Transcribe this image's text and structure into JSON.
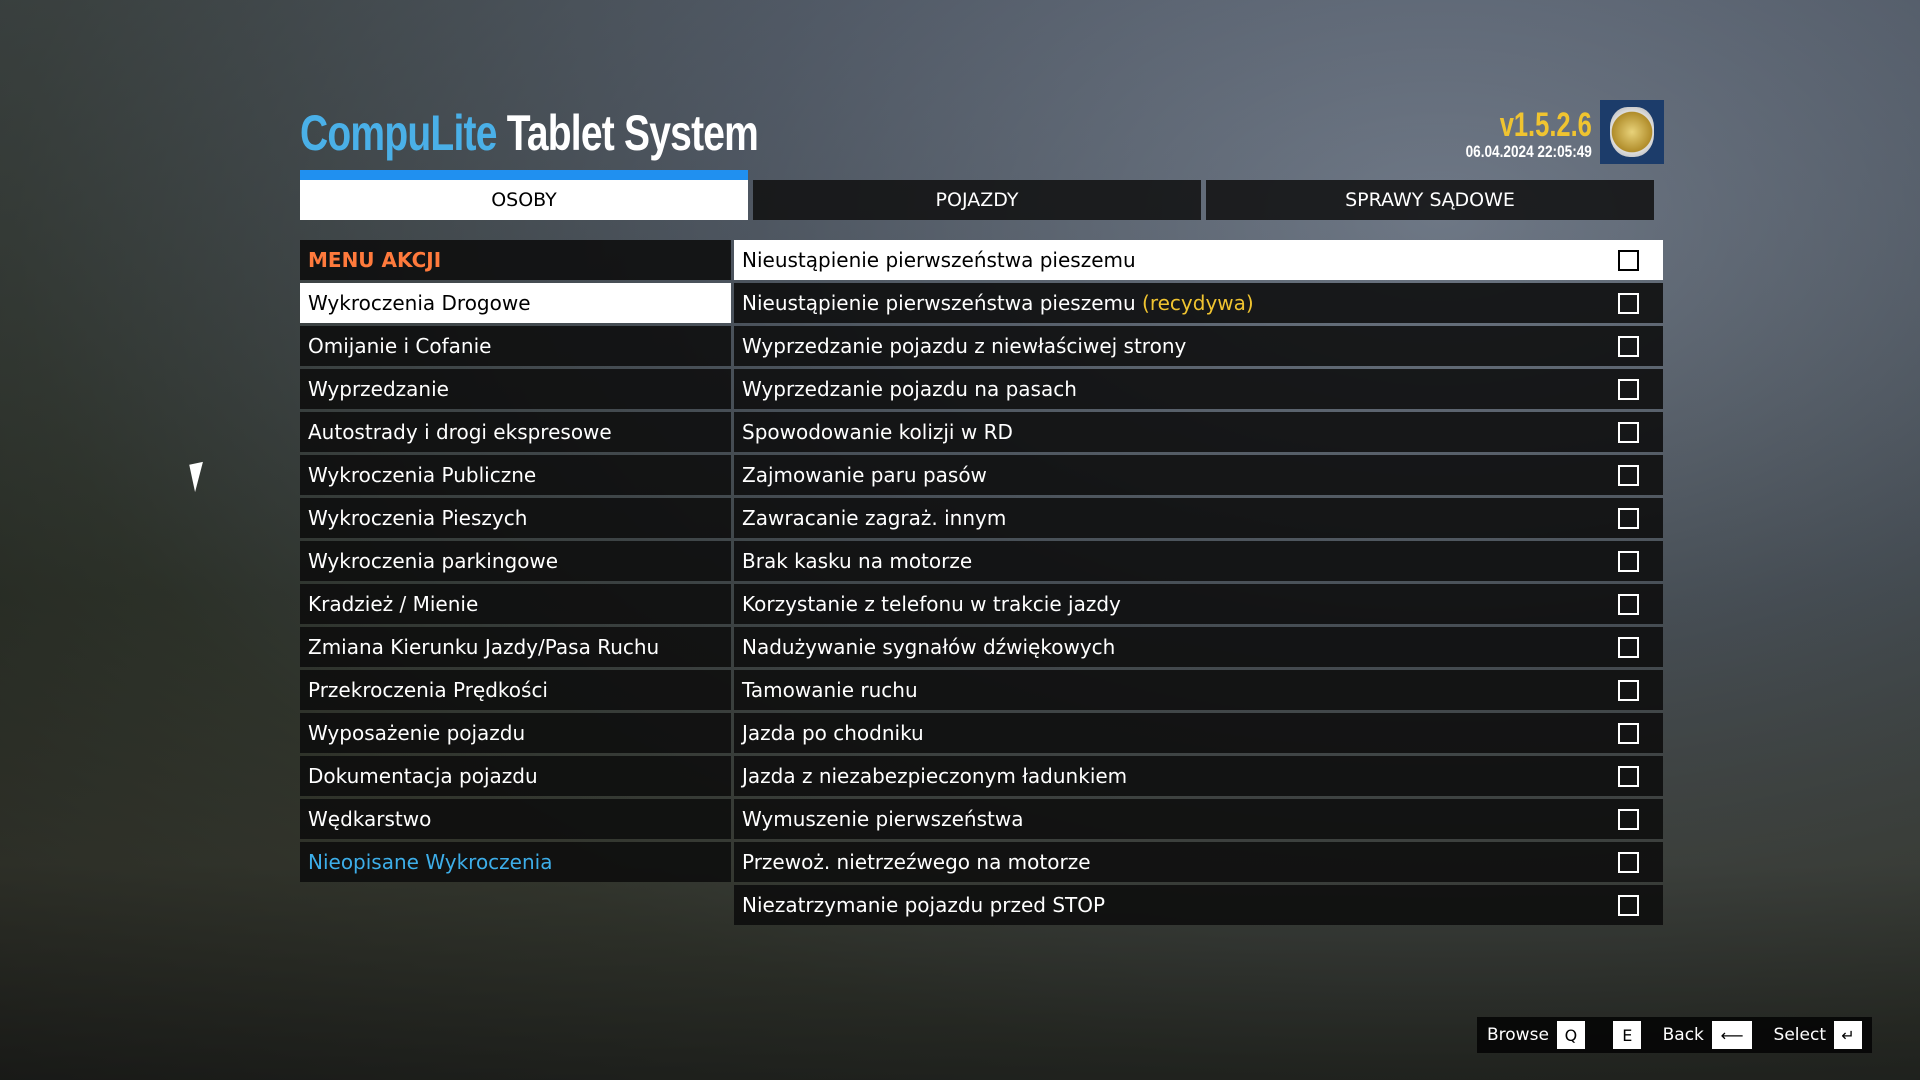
{
  "header": {
    "title_brand": "CompuLite",
    "title_rest": " Tablet System",
    "version": "v1.5.2.6",
    "datetime": "06.04.2024 22:05:49"
  },
  "tabs": [
    {
      "label": "OSOBY",
      "active": true
    },
    {
      "label": "POJAZDY"
    },
    {
      "label": "SPRAWY SĄDOWE"
    }
  ],
  "menu": {
    "header": "MENU AKCJI",
    "items": [
      "Wykroczenia Drogowe",
      "Omijanie i Cofanie",
      "Wyprzedzanie",
      "Autostrady i drogi ekspresowe",
      "Wykroczenia Publiczne",
      "Wykroczenia Pieszych",
      "Wykroczenia parkingowe",
      "Kradzież / Mienie",
      "Zmiana Kierunku Jazdy/Pasa Ruchu",
      "Przekroczenia Prędkości",
      "Wyposażenie pojazdu",
      "Dokumentacja pojazdu",
      "Wędkarstwo",
      "Nieopisane Wykroczenia"
    ],
    "selected": 0
  },
  "offenses": [
    {
      "label": "Nieustąpienie pierwszeństwa pieszemu",
      "suffix": "",
      "checked": false
    },
    {
      "label": "Nieustąpienie pierwszeństwa pieszemu ",
      "suffix": "(recydywa)",
      "checked": false
    },
    {
      "label": "Wyprzedzanie pojazdu z niewłaściwej strony",
      "suffix": "",
      "checked": false
    },
    {
      "label": "Wyprzedzanie pojazdu na pasach",
      "suffix": "",
      "checked": false
    },
    {
      "label": "Spowodowanie kolizji w RD",
      "suffix": "",
      "checked": false
    },
    {
      "label": "Zajmowanie paru pasów",
      "suffix": "",
      "checked": false
    },
    {
      "label": "Zawracanie zagraż. innym",
      "suffix": "",
      "checked": false
    },
    {
      "label": "Brak kasku na motorze",
      "suffix": "",
      "checked": false
    },
    {
      "label": "Korzystanie z telefonu w trakcie jazdy",
      "suffix": "",
      "checked": false
    },
    {
      "label": "Nadużywanie sygnałów dźwiękowych",
      "suffix": "",
      "checked": false
    },
    {
      "label": "Tamowanie ruchu",
      "suffix": "",
      "checked": false
    },
    {
      "label": "Jazda po chodniku",
      "suffix": "",
      "checked": false
    },
    {
      "label": "Jazda z niezabezpieczonym ładunkiem",
      "suffix": "",
      "checked": false
    },
    {
      "label": "Wymuszenie pierwszeństwa",
      "suffix": "",
      "checked": false
    },
    {
      "label": "Przewoż. nietrzeźwego na motorze",
      "suffix": "",
      "checked": false
    },
    {
      "label": "Niezatrzymanie pojazdu przed STOP",
      "suffix": "",
      "checked": false
    }
  ],
  "footer": {
    "browse": "Browse",
    "key_q": "Q",
    "key_e": "E",
    "back": "Back",
    "key_back": "⟵",
    "select": "Select",
    "key_select": "↵"
  },
  "colors": {
    "accent": "#2090f0",
    "brand": "#4ab0e8",
    "menu_header": "#ff7a3c",
    "version": "#f0c430"
  }
}
